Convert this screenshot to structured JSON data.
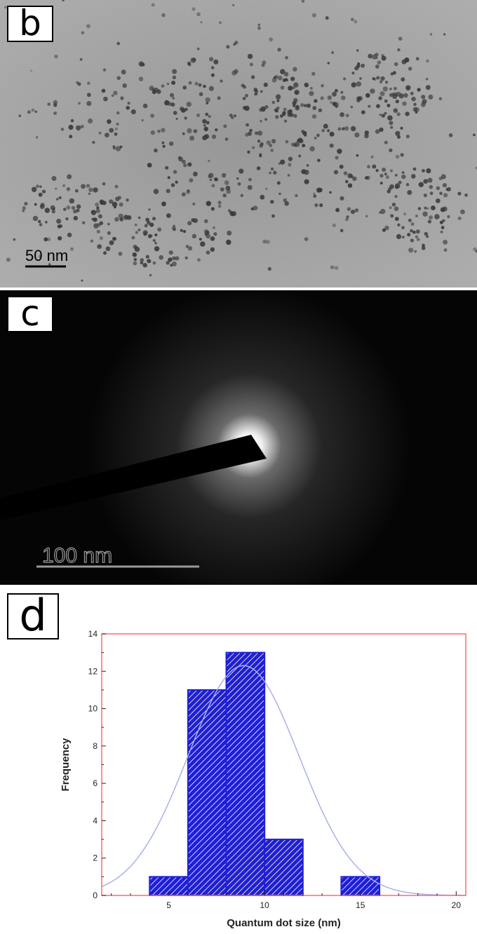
{
  "panels": {
    "b": {
      "label": "b",
      "scale_bar_text": "50 nm"
    },
    "c": {
      "label": "c",
      "scale_bar_text": "100 nm"
    },
    "d": {
      "label": "d"
    }
  },
  "chart_data": {
    "type": "bar",
    "subtype": "histogram",
    "xlabel": "Quantum dot size (nm)",
    "ylabel": "Frequency",
    "xlim": [
      1.5,
      20.5
    ],
    "ylim": [
      0,
      14
    ],
    "xticks": [
      5,
      10,
      15,
      20
    ],
    "yticks": [
      0,
      2,
      4,
      6,
      8,
      10,
      12,
      14
    ],
    "bins": [
      {
        "start": 4,
        "end": 6,
        "value": 1
      },
      {
        "start": 6,
        "end": 8,
        "value": 11
      },
      {
        "start": 8,
        "end": 10,
        "value": 13
      },
      {
        "start": 10,
        "end": 12,
        "value": 3
      },
      {
        "start": 14,
        "end": 16,
        "value": 1
      }
    ],
    "fit_curve": {
      "type": "gaussian",
      "mean": 8.9,
      "sigma": 2.9,
      "peak": 12.3
    },
    "colors": {
      "bar_fill": "#1f1fd6",
      "bar_hatch": "#ffffff",
      "fit_line": "#aab0ee",
      "frame": "#ff6b6b"
    },
    "grid": false
  }
}
